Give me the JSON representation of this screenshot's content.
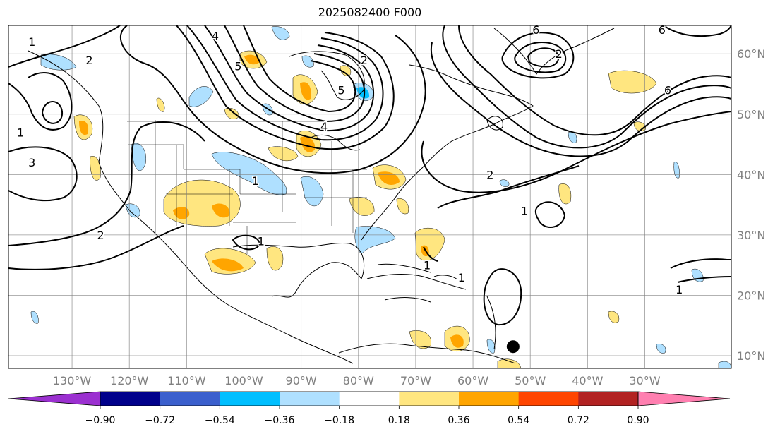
{
  "title": "2025082400 F000",
  "lon_ticks": [
    {
      "lon": -130,
      "label": "130°W"
    },
    {
      "lon": -120,
      "label": "120°W"
    },
    {
      "lon": -110,
      "label": "110°W"
    },
    {
      "lon": -100,
      "label": "100°W"
    },
    {
      "lon": -90,
      "label": "90°W"
    },
    {
      "lon": -80,
      "label": "80°W"
    },
    {
      "lon": -70,
      "label": "70°W"
    },
    {
      "lon": -60,
      "label": "60°W"
    },
    {
      "lon": -50,
      "label": "50°W"
    },
    {
      "lon": -40,
      "label": "40°W"
    },
    {
      "lon": -30,
      "label": "30°W"
    }
  ],
  "lat_ticks": [
    {
      "lat": 60,
      "label": "60°N"
    },
    {
      "lat": 50,
      "label": "50°N"
    },
    {
      "lat": 40,
      "label": "40°N"
    },
    {
      "lat": 30,
      "label": "30°N"
    },
    {
      "lat": 20,
      "label": "20°N"
    },
    {
      "lat": 10,
      "label": "10°N"
    }
  ],
  "colorbar": {
    "colors": [
      "#9b30d0",
      "#00008b",
      "#3a5fcd",
      "#00bfff",
      "#afe0ff",
      "#ffffff",
      "#ffe680",
      "#ffa500",
      "#ff4500",
      "#b22222",
      "#ff7fb0"
    ],
    "labels": [
      "−0.90",
      "−0.72",
      "−0.54",
      "−0.36",
      "−0.18",
      "0.18",
      "0.36",
      "0.54",
      "0.72",
      "0.90"
    ]
  },
  "contour_labels": [
    {
      "text": "1",
      "lon": -137,
      "lat": 62
    },
    {
      "text": "2",
      "lon": -127,
      "lat": 59
    },
    {
      "text": "4",
      "lon": -105,
      "lat": 63
    },
    {
      "text": "5",
      "lon": -101,
      "lat": 58
    },
    {
      "text": "2",
      "lon": -79,
      "lat": 59
    },
    {
      "text": "5",
      "lon": -83,
      "lat": 54
    },
    {
      "text": "4",
      "lon": -86,
      "lat": 48
    },
    {
      "text": "6",
      "lon": -49,
      "lat": 64
    },
    {
      "text": "2",
      "lon": -45,
      "lat": 60
    },
    {
      "text": "6",
      "lon": -27,
      "lat": 64
    },
    {
      "text": "6",
      "lon": -26,
      "lat": 54
    },
    {
      "text": "2",
      "lon": -57,
      "lat": 40
    },
    {
      "text": "1",
      "lon": -51,
      "lat": 34
    },
    {
      "text": "1",
      "lon": -98,
      "lat": 39
    },
    {
      "text": "1",
      "lon": -97,
      "lat": 29
    },
    {
      "text": "2",
      "lon": -125,
      "lat": 30
    },
    {
      "text": "1",
      "lon": -139,
      "lat": 47
    },
    {
      "text": "3",
      "lon": -137,
      "lat": 42
    },
    {
      "text": "1",
      "lon": -62,
      "lat": 23
    },
    {
      "text": "1",
      "lon": -68,
      "lat": 25
    },
    {
      "text": "1",
      "lon": -24,
      "lat": 21
    }
  ],
  "marker": {
    "lon": -53,
    "lat": 11.5
  }
}
